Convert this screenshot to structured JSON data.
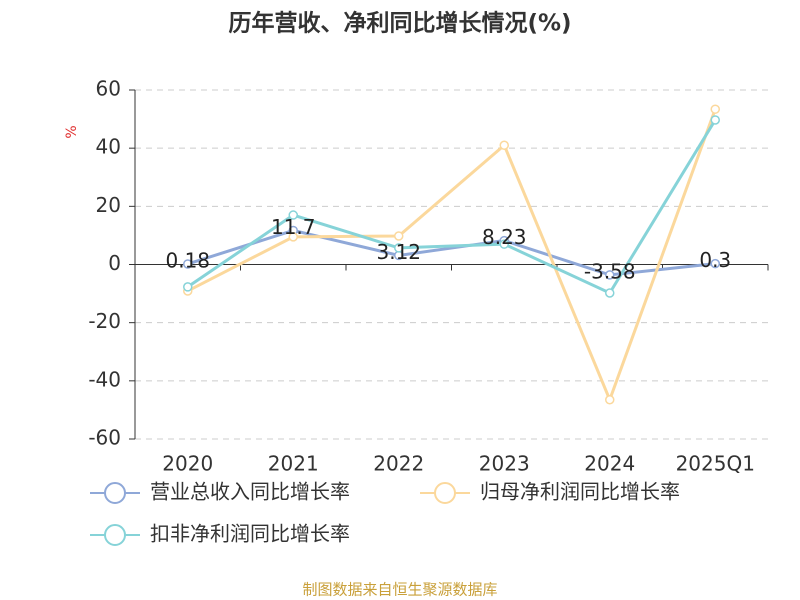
{
  "chart_data": {
    "type": "line",
    "title": "历年营收、净利同比增长情况(%)",
    "y_label": "%",
    "categories": [
      "2020",
      "2021",
      "2022",
      "2023",
      "2024",
      "2025Q1"
    ],
    "series": [
      {
        "name": "营业总收入同比增长率",
        "color": "#8fa8d8",
        "values": [
          0.18,
          11.7,
          3.12,
          8.23,
          -3.58,
          0.3
        ],
        "data_labels": true
      },
      {
        "name": "归母净利润同比增长率",
        "color": "#fbd89c",
        "values": [
          -9.1,
          9.5,
          9.8,
          41,
          -46.5,
          53.4
        ]
      },
      {
        "name": "扣非净利润同比增长率",
        "color": "#86d3d8",
        "values": [
          -7.7,
          17,
          5.7,
          7,
          -9.8,
          49.7
        ]
      }
    ],
    "ylim": [
      -60,
      60
    ],
    "yticks": [
      -60,
      -40,
      -20,
      0,
      20,
      40,
      60
    ],
    "grid": true,
    "source": "制图数据来自恒生聚源数据库"
  }
}
